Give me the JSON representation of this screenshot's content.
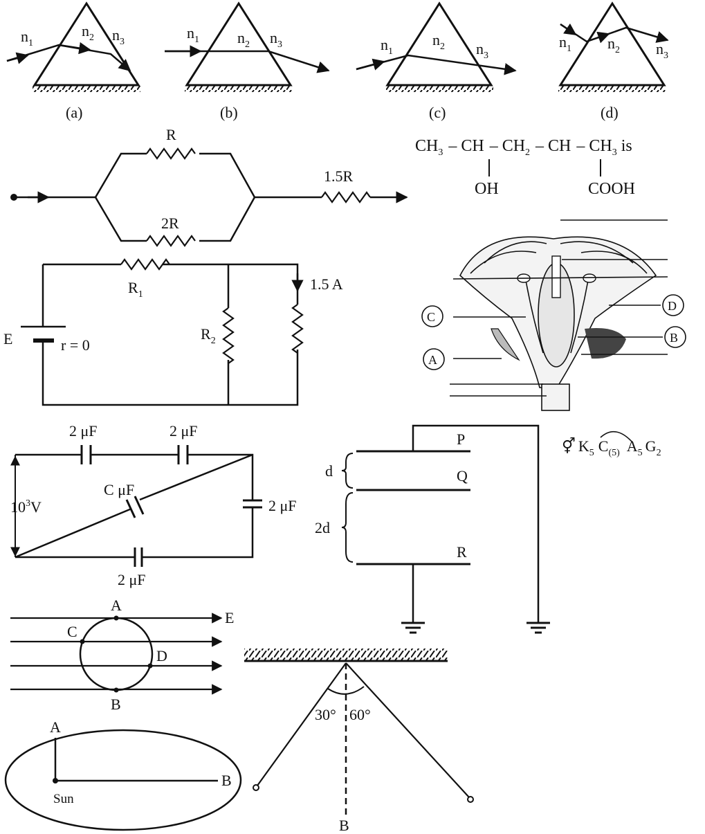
{
  "prisms": {
    "a": {
      "caption": "(a)",
      "n1": "n",
      "n1s": "1",
      "n2": "n",
      "n2s": "2",
      "n3": "n",
      "n3s": "3"
    },
    "b": {
      "caption": "(b)",
      "n1": "n",
      "n1s": "1",
      "n2": "n",
      "n2s": "2",
      "n3": "n",
      "n3s": "3"
    },
    "c": {
      "caption": "(c)",
      "n1": "n",
      "n1s": "1",
      "n2": "n",
      "n2s": "2",
      "n3": "n",
      "n3s": "3"
    },
    "d": {
      "caption": "(d)",
      "n1": "n",
      "n1s": "1",
      "n2": "n",
      "n2s": "2",
      "n3": "n",
      "n3s": "3"
    }
  },
  "resistor_network": {
    "top": "R",
    "bottom": "2R",
    "series": "1.5R"
  },
  "chem": {
    "ch3a": "CH",
    "s3a": "3",
    "dash1": "–",
    "ch_a": "CH",
    "dash2": "–",
    "ch2": "CH",
    "s2": "2",
    "dash3": "–",
    "ch_b": "CH",
    "dash4": "–",
    "ch3b": "CH",
    "s3b": "3",
    "is": " is",
    "oh": "OH",
    "cooh": "COOH"
  },
  "circuit2": {
    "r1": "R",
    "r1s": "1",
    "r2": "R",
    "r2s": "2",
    "current": "1.5 A",
    "emf": "E",
    "internal": "r = 0"
  },
  "flower": {
    "labels": [
      "C",
      "A",
      "D",
      "B"
    ]
  },
  "capacitors": {
    "c1": "2 μF",
    "c2": "2 μF",
    "c_mid": "C μF",
    "c_right": "2 μF",
    "c_bottom": "2 μF",
    "v": "10",
    "vsup": "3",
    "vunit": "V"
  },
  "plates": {
    "p": "P",
    "q": "Q",
    "r": "R",
    "d": "d",
    "d2": "2d"
  },
  "formula": {
    "sym": "⚥",
    "k": "K",
    "ks": "5",
    "c": "C",
    "cs": "(5)",
    "a": "A",
    "as": "5",
    "g": "G",
    "gs": "2"
  },
  "field": {
    "a": "A",
    "b": "B",
    "c": "C",
    "d": "D",
    "e": "E"
  },
  "mirror": {
    "a30": "30°",
    "a60": "60°",
    "b": "B"
  },
  "orbit": {
    "a": "A",
    "b": "B",
    "sun": "Sun"
  }
}
